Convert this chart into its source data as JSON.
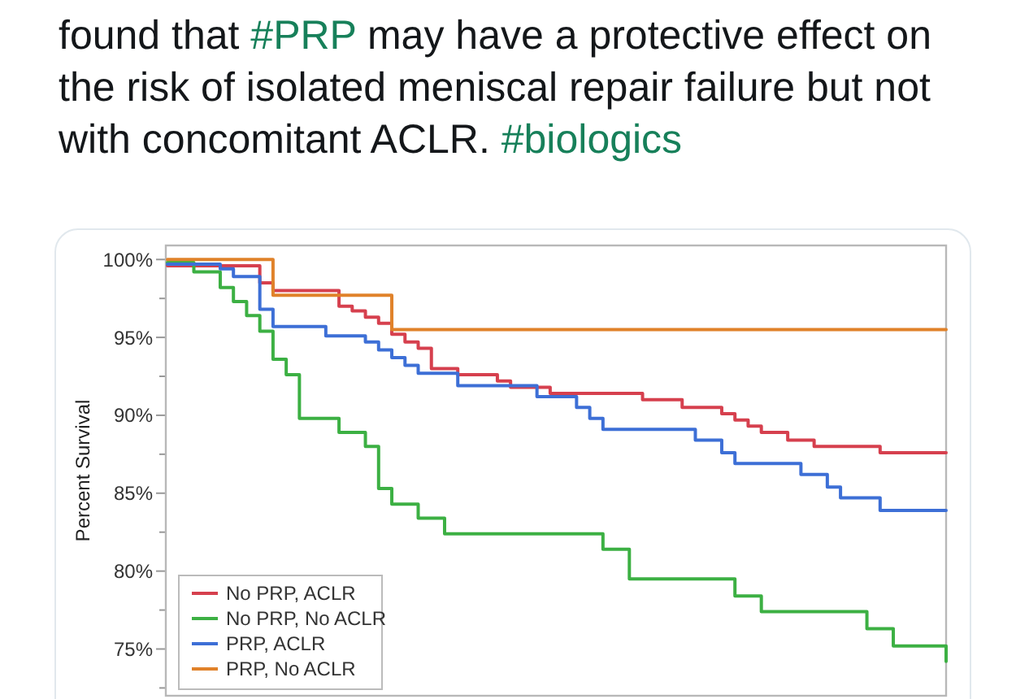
{
  "chart_data": {
    "type": "step",
    "title": "found that #PRP may have a protective effect on the risk of isolated meniscal repair failure but not with concomitant ACLR. #biologics",
    "ylabel": "Percent Survival",
    "categories": [
      null,
      null,
      null,
      null,
      null,
      null,
      null,
      null,
      null,
      null,
      null,
      null,
      null,
      null,
      null,
      null,
      null,
      null,
      null,
      null,
      null,
      null,
      null,
      null,
      null,
      null,
      null,
      null,
      null,
      null,
      null,
      null,
      null,
      null,
      null,
      null,
      null,
      null,
      null,
      null,
      null,
      null,
      null,
      null,
      null,
      null,
      null,
      null,
      null,
      null,
      null,
      null,
      null,
      null,
      null,
      null,
      null,
      null,
      null,
      null
    ],
    "series": [
      {
        "name": "No PRP, ACLR",
        "color": "#d6404e",
        "values": [
          99.6,
          99.6,
          99.6,
          99.6,
          99.6,
          99.6,
          99.6,
          98.5,
          98.0,
          98.0,
          98.0,
          98.0,
          98.0,
          97.0,
          96.7,
          96.3,
          95.9,
          95.2,
          94.7,
          94.3,
          93.0,
          93.0,
          92.6,
          92.6,
          92.6,
          92.2,
          91.8,
          91.8,
          91.8,
          91.4,
          91.4,
          91.4,
          91.4,
          91.4,
          91.4,
          91.4,
          91.0,
          91.0,
          91.0,
          90.5,
          90.5,
          90.5,
          90.1,
          89.7,
          89.3,
          88.9,
          88.9,
          88.4,
          88.4,
          88.0,
          88.0,
          88.0,
          88.0,
          88.0,
          87.6,
          87.6,
          87.6,
          87.6,
          87.6,
          87.6
        ]
      },
      {
        "name": "No PRP, No ACLR",
        "color": "#3cb043",
        "values": [
          99.8,
          99.8,
          99.2,
          99.2,
          98.2,
          97.3,
          96.4,
          95.4,
          93.6,
          92.6,
          89.8,
          89.8,
          89.8,
          88.9,
          88.9,
          88.0,
          85.3,
          84.3,
          84.3,
          83.4,
          83.4,
          82.4,
          82.4,
          82.4,
          82.4,
          82.4,
          82.4,
          82.4,
          82.4,
          82.4,
          82.4,
          82.4,
          82.4,
          81.4,
          81.4,
          79.5,
          79.5,
          79.5,
          79.5,
          79.5,
          79.5,
          79.5,
          79.5,
          78.4,
          78.4,
          77.4,
          77.4,
          77.4,
          77.4,
          77.4,
          77.4,
          77.4,
          77.4,
          76.3,
          76.3,
          75.2,
          75.2,
          75.2,
          75.2,
          74.2
        ]
      },
      {
        "name": "PRP, ACLR",
        "color": "#3d6fd6",
        "values": [
          99.7,
          99.7,
          99.7,
          99.7,
          99.4,
          98.9,
          98.9,
          96.8,
          95.7,
          95.7,
          95.7,
          95.7,
          95.1,
          95.1,
          95.1,
          94.7,
          94.2,
          93.7,
          93.2,
          92.7,
          92.7,
          92.7,
          91.9,
          91.9,
          91.9,
          91.9,
          91.9,
          91.9,
          91.2,
          91.2,
          91.2,
          90.5,
          89.8,
          89.1,
          89.1,
          89.1,
          89.1,
          89.1,
          89.1,
          89.1,
          88.4,
          88.4,
          87.6,
          86.9,
          86.9,
          86.9,
          86.9,
          86.9,
          86.2,
          86.2,
          85.4,
          84.7,
          84.7,
          84.7,
          83.9,
          83.9,
          83.9,
          83.9,
          83.9,
          83.9
        ]
      },
      {
        "name": "PRP, No ACLR",
        "color": "#e0822a",
        "values": [
          100,
          100,
          100,
          100,
          100,
          100,
          100,
          100,
          97.7,
          97.7,
          97.7,
          97.7,
          97.7,
          97.7,
          97.7,
          97.7,
          97.7,
          95.5,
          95.5,
          95.5,
          95.5,
          95.5,
          95.5,
          95.5,
          95.5,
          95.5,
          95.5,
          95.5,
          95.5,
          95.5,
          95.5,
          95.5,
          95.5,
          95.5,
          95.5,
          95.5,
          95.5,
          95.5,
          95.5,
          95.5,
          95.5,
          95.5,
          95.5,
          95.5,
          95.5,
          95.5,
          95.5,
          95.5,
          95.5,
          95.5,
          95.5,
          95.5,
          95.5,
          95.5,
          95.5,
          95.5,
          95.5,
          95.5,
          95.5,
          95.5
        ]
      }
    ],
    "ylim": [
      72,
      100.9
    ],
    "yticks": [
      {
        "value": 100,
        "label": "100%"
      },
      {
        "value": 97.5,
        "label": null
      },
      {
        "value": 95,
        "label": "95%"
      },
      {
        "value": 92.5,
        "label": null
      },
      {
        "value": 90,
        "label": "90%"
      },
      {
        "value": 87.5,
        "label": null
      },
      {
        "value": 85,
        "label": "85%"
      },
      {
        "value": 82.5,
        "label": null
      },
      {
        "value": 80,
        "label": "80%"
      },
      {
        "value": 77.5,
        "label": null
      },
      {
        "value": 75,
        "label": "75%"
      },
      {
        "value": 72.5,
        "label": null
      }
    ],
    "legend": "bottom left"
  }
}
